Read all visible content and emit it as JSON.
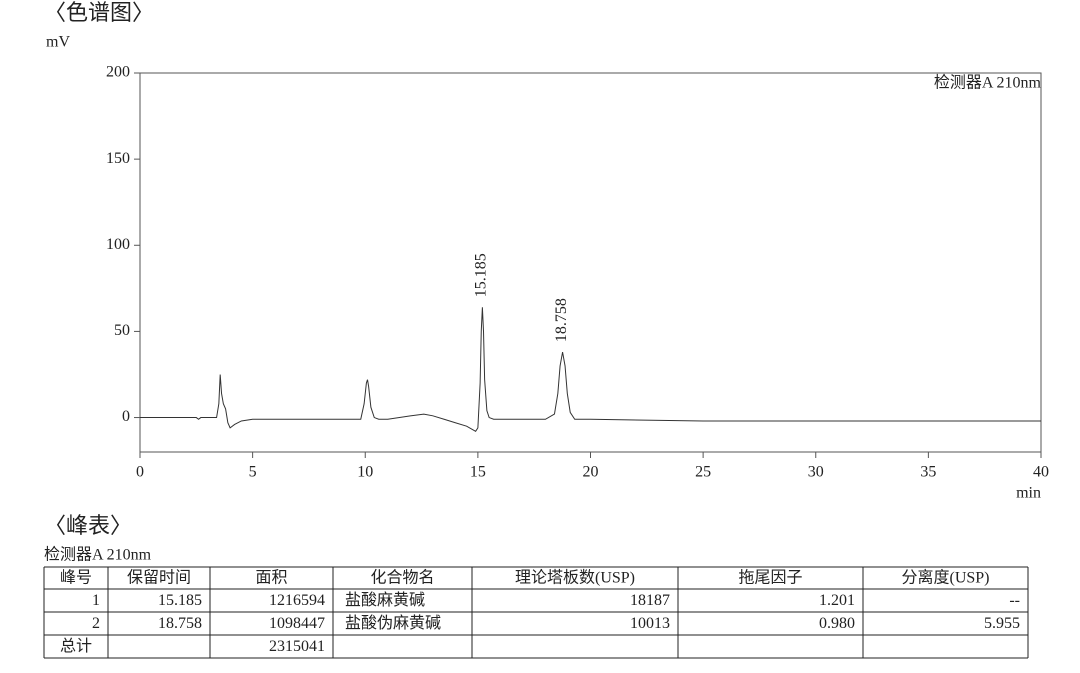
{
  "chart_section_title": "〈色谱图〉",
  "chart_data": {
    "type": "line",
    "ylabel": "mV",
    "xlabel": "min",
    "annotation": "检测器A 210nm",
    "x": [
      0,
      1,
      2,
      2.5,
      2.6,
      2.7,
      3.0,
      3.4,
      3.5,
      3.56,
      3.62,
      3.7,
      3.8,
      3.9,
      4.0,
      4.2,
      4.5,
      5,
      6,
      7,
      8,
      9,
      9.8,
      9.95,
      10.05,
      10.1,
      10.15,
      10.25,
      10.4,
      10.6,
      11,
      12,
      12.6,
      13,
      13.5,
      14,
      14.5,
      14.9,
      15.0,
      15.1,
      15.15,
      15.2,
      15.25,
      15.3,
      15.4,
      15.5,
      15.7,
      16,
      17,
      18,
      18.4,
      18.55,
      18.65,
      18.76,
      18.87,
      18.97,
      19.1,
      19.3,
      20,
      25,
      30,
      35,
      40
    ],
    "series": [
      {
        "color": "#333333",
        "values": [
          0,
          0,
          0,
          0,
          -1,
          0,
          0,
          0,
          8,
          25,
          14,
          8,
          5,
          -3,
          -6,
          -4,
          -2,
          -1,
          -1,
          -1,
          -1,
          -1,
          -1,
          8,
          20,
          22,
          18,
          6,
          0,
          -1,
          -1,
          1,
          2,
          1,
          -1,
          -3,
          -5,
          -8,
          -6,
          20,
          50,
          64,
          50,
          22,
          4,
          0,
          -1,
          -1,
          -1,
          -1,
          2,
          14,
          30,
          38,
          30,
          14,
          3,
          -1,
          -1,
          -2,
          -2,
          -2,
          -2
        ]
      }
    ],
    "peak_labels": [
      15.185,
      18.758
    ],
    "xlim": [
      0,
      40
    ],
    "xticks": [
      0,
      5,
      10,
      15,
      20,
      25,
      30,
      35,
      40
    ],
    "ylim": [
      -20,
      200
    ],
    "yticks": [
      0,
      50,
      100,
      150,
      200
    ]
  },
  "table_section_title": "〈峰表〉",
  "table": {
    "caption": "检测器A 210nm",
    "header": [
      "峰号",
      "保留时间",
      "面积",
      "化合物名",
      "理论塔板数(USP)",
      "拖尾因子",
      "分离度(USP)"
    ],
    "rows": [
      [
        "1",
        "15.185",
        "1216594",
        "盐酸麻黄碱",
        "18187",
        "1.201",
        "--"
      ],
      [
        "2",
        "18.758",
        "1098447",
        "盐酸伪麻黄碱",
        "10013",
        "0.980",
        "5.955"
      ],
      [
        "总计",
        "",
        "2315041",
        "",
        "",
        "",
        ""
      ]
    ]
  }
}
